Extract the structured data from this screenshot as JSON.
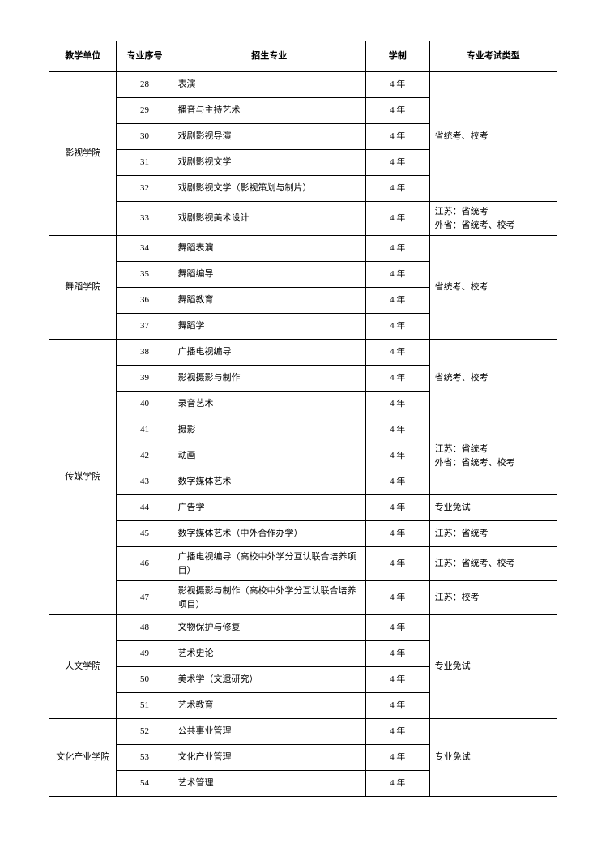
{
  "table": {
    "border_color": "#000000",
    "background_color": "#ffffff",
    "text_color": "#000000",
    "fontsize": 11,
    "headers": {
      "unit": "教学单位",
      "num": "专业序号",
      "major": "招生专业",
      "duration": "学制",
      "exam": "专业考试类型"
    },
    "groups": [
      {
        "unit": "影视学院",
        "rows": [
          {
            "num": "28",
            "major": "表演",
            "dur": "4 年",
            "exam": ""
          },
          {
            "num": "29",
            "major": "播音与主持艺术",
            "dur": "4 年",
            "exam": ""
          },
          {
            "num": "30",
            "major": "戏剧影视导演",
            "dur": "4 年",
            "exam": ""
          },
          {
            "num": "31",
            "major": "戏剧影视文学",
            "dur": "4 年",
            "exam": ""
          },
          {
            "num": "32",
            "major": "戏剧影视文学（影视策划与制片）",
            "dur": "4 年",
            "exam": ""
          },
          {
            "num": "33",
            "major": "戏剧影视美术设计",
            "dur": "4 年",
            "exam": "江苏：省统考\n外省：省统考、校考"
          }
        ],
        "exam_merge": [
          {
            "start": 0,
            "span": 5,
            "text": "省统考、校考"
          },
          {
            "start": 5,
            "span": 1,
            "text": "江苏：省统考\n外省：省统考、校考"
          }
        ]
      },
      {
        "unit": "舞蹈学院",
        "rows": [
          {
            "num": "34",
            "major": "舞蹈表演",
            "dur": "4 年"
          },
          {
            "num": "35",
            "major": "舞蹈编导",
            "dur": "4 年"
          },
          {
            "num": "36",
            "major": "舞蹈教育",
            "dur": "4 年"
          },
          {
            "num": "37",
            "major": "舞蹈学",
            "dur": "4 年"
          }
        ],
        "exam_merge": [
          {
            "start": 0,
            "span": 4,
            "text": "省统考、校考"
          }
        ]
      },
      {
        "unit": "传媒学院",
        "rows": [
          {
            "num": "38",
            "major": "广播电视编导",
            "dur": "4 年"
          },
          {
            "num": "39",
            "major": "影视摄影与制作",
            "dur": "4 年"
          },
          {
            "num": "40",
            "major": "录音艺术",
            "dur": "4 年"
          },
          {
            "num": "41",
            "major": "摄影",
            "dur": "4 年"
          },
          {
            "num": "42",
            "major": "动画",
            "dur": "4 年"
          },
          {
            "num": "43",
            "major": "数字媒体艺术",
            "dur": "4 年"
          },
          {
            "num": "44",
            "major": "广告学",
            "dur": "4 年"
          },
          {
            "num": "45",
            "major": "数字媒体艺术（中外合作办学）",
            "dur": "4 年"
          },
          {
            "num": "46",
            "major": "广播电视编导（高校中外学分互认联合培养项目）",
            "dur": "4 年",
            "tall": true
          },
          {
            "num": "47",
            "major": "影视摄影与制作（高校中外学分互认联合培养项目）",
            "dur": "4 年",
            "tall": true
          }
        ],
        "exam_merge": [
          {
            "start": 0,
            "span": 3,
            "text": "省统考、校考"
          },
          {
            "start": 3,
            "span": 3,
            "text": "江苏：省统考\n外省：省统考、校考"
          },
          {
            "start": 6,
            "span": 1,
            "text": "专业免试"
          },
          {
            "start": 7,
            "span": 1,
            "text": "江苏：省统考"
          },
          {
            "start": 8,
            "span": 1,
            "text": "江苏：省统考、校考"
          },
          {
            "start": 9,
            "span": 1,
            "text": "江苏：校考"
          }
        ]
      },
      {
        "unit": "人文学院",
        "rows": [
          {
            "num": "48",
            "major": "文物保护与修复",
            "dur": "4 年"
          },
          {
            "num": "49",
            "major": "艺术史论",
            "dur": "4 年"
          },
          {
            "num": "50",
            "major": "美术学（文遗研究）",
            "dur": "4 年"
          },
          {
            "num": "51",
            "major": "艺术教育",
            "dur": "4 年"
          }
        ],
        "exam_merge": [
          {
            "start": 0,
            "span": 4,
            "text": "专业免试"
          }
        ]
      },
      {
        "unit": "文化产业学院",
        "rows": [
          {
            "num": "52",
            "major": "公共事业管理",
            "dur": "4 年"
          },
          {
            "num": "53",
            "major": "文化产业管理",
            "dur": "4 年"
          },
          {
            "num": "54",
            "major": "艺术管理",
            "dur": "4 年"
          }
        ],
        "exam_merge": [
          {
            "start": 0,
            "span": 3,
            "text": "专业免试"
          }
        ]
      }
    ]
  }
}
